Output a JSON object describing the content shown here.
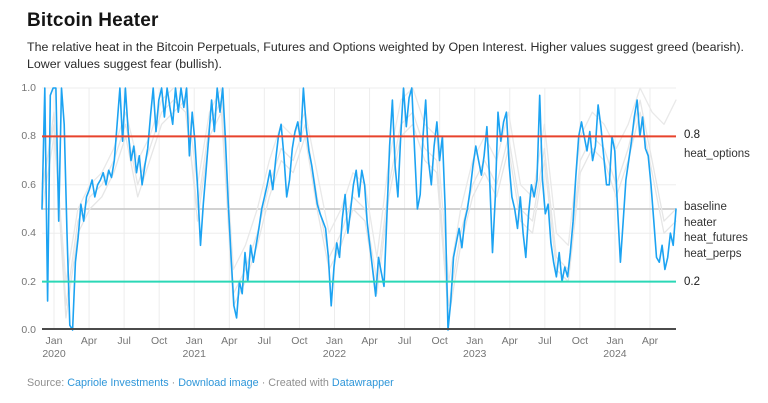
{
  "header": {
    "title": "Bitcoin Heater",
    "description": "The relative heat in the Bitcoin Perpetuals, Futures and Options weighted by Open Interest. Higher values suggest greed (bearish). Lower values suggest fear (bullish)."
  },
  "footer": {
    "source_prefix": "Source:",
    "source_link": "Capriole Investments",
    "separator": "·",
    "download_link": "Download image",
    "created_prefix": "Created with",
    "created_link": "Datawrapper"
  },
  "chart_data": {
    "type": "line",
    "title": "Bitcoin Heater",
    "xlabel": "",
    "ylabel": "",
    "ylim": [
      0.0,
      1.0
    ],
    "grid": true,
    "legend_position": "right",
    "x_range": "Jan 2020 - Jun 2024, weekly (heater) / monthly (component series)",
    "y_ticks": [
      {
        "label": "1.0",
        "v": 1.0
      },
      {
        "label": "0.8",
        "v": 0.8
      },
      {
        "label": "0.6",
        "v": 0.6
      },
      {
        "label": "0.4",
        "v": 0.4
      },
      {
        "label": "0.2",
        "v": 0.2
      },
      {
        "label": "0.0",
        "v": 0.0
      }
    ],
    "x_ticks": [
      {
        "month": "Jan",
        "year": "2020"
      },
      {
        "month": "Apr",
        "year": ""
      },
      {
        "month": "Jul",
        "year": ""
      },
      {
        "month": "Oct",
        "year": ""
      },
      {
        "month": "Jan",
        "year": "2021"
      },
      {
        "month": "Apr",
        "year": ""
      },
      {
        "month": "Jul",
        "year": ""
      },
      {
        "month": "Oct",
        "year": ""
      },
      {
        "month": "Jan",
        "year": "2022"
      },
      {
        "month": "Apr",
        "year": ""
      },
      {
        "month": "Jul",
        "year": ""
      },
      {
        "month": "Oct",
        "year": ""
      },
      {
        "month": "Jan",
        "year": "2023"
      },
      {
        "month": "Apr",
        "year": ""
      },
      {
        "month": "Jul",
        "year": ""
      },
      {
        "month": "Oct",
        "year": ""
      },
      {
        "month": "Jan",
        "year": "2024"
      },
      {
        "month": "Apr",
        "year": ""
      }
    ],
    "series": [
      {
        "name": "heat_futures",
        "color": "#e6e6e6",
        "width": 1.3,
        "values": [
          0.55,
          0.9,
          0.1,
          0.45,
          0.55,
          0.6,
          0.7,
          0.85,
          0.6,
          0.75,
          0.9,
          0.95,
          0.9,
          0.5,
          0.85,
          0.95,
          0.15,
          0.25,
          0.4,
          0.6,
          0.75,
          0.7,
          0.85,
          0.55,
          0.3,
          0.4,
          0.55,
          0.5,
          0.2,
          0.6,
          0.85,
          0.9,
          0.75,
          0.7,
          0.1,
          0.4,
          0.6,
          0.7,
          0.6,
          0.8,
          0.5,
          0.45,
          0.75,
          0.3,
          0.25,
          0.7,
          0.8,
          0.75,
          0.6,
          0.75,
          0.95,
          0.7,
          0.45,
          0.5
        ]
      },
      {
        "name": "heat_perps",
        "color": "#e6e6e6",
        "width": 1.3,
        "values": [
          0.6,
          0.85,
          0.05,
          0.4,
          0.5,
          0.55,
          0.65,
          0.8,
          0.55,
          0.7,
          0.85,
          0.9,
          0.95,
          0.45,
          0.8,
          0.9,
          0.1,
          0.2,
          0.35,
          0.55,
          0.7,
          0.65,
          0.8,
          0.5,
          0.25,
          0.35,
          0.5,
          0.45,
          0.15,
          0.55,
          0.8,
          0.85,
          0.7,
          0.65,
          0.05,
          0.35,
          0.55,
          0.65,
          0.55,
          0.75,
          0.45,
          0.4,
          0.7,
          0.25,
          0.2,
          0.65,
          0.75,
          0.7,
          0.55,
          0.7,
          0.9,
          0.65,
          0.4,
          0.45
        ]
      },
      {
        "name": "heat_options",
        "color": "#e9e9e9",
        "width": 1.3,
        "values": [
          0.5,
          0.8,
          0.2,
          0.5,
          0.6,
          0.65,
          0.75,
          0.9,
          0.7,
          0.8,
          0.95,
          1.0,
          1.0,
          0.6,
          0.9,
          1.0,
          0.25,
          0.35,
          0.5,
          0.7,
          0.85,
          0.8,
          0.9,
          0.65,
          0.4,
          0.5,
          0.65,
          0.6,
          0.3,
          0.7,
          0.95,
          1.0,
          0.85,
          0.8,
          0.2,
          0.5,
          0.7,
          0.8,
          0.7,
          0.9,
          0.6,
          0.55,
          0.85,
          0.4,
          0.35,
          0.8,
          0.9,
          0.85,
          0.75,
          0.85,
          1.0,
          0.9,
          0.85,
          0.95
        ]
      },
      {
        "name": "heater",
        "color": "#1ca3f2",
        "width": 1.6,
        "values": [
          0.5,
          1.0,
          0.12,
          0.97,
          1.0,
          1.0,
          0.45,
          1.0,
          0.85,
          0.4,
          0.02,
          0.0,
          0.28,
          0.38,
          0.52,
          0.45,
          0.55,
          0.58,
          0.62,
          0.55,
          0.6,
          0.62,
          0.65,
          0.6,
          0.66,
          0.63,
          0.7,
          0.85,
          1.0,
          0.78,
          1.0,
          0.82,
          0.7,
          0.76,
          0.65,
          0.72,
          0.6,
          0.68,
          0.75,
          0.88,
          1.0,
          0.82,
          0.95,
          1.0,
          0.88,
          1.0,
          0.92,
          0.85,
          1.0,
          0.9,
          1.0,
          0.92,
          1.0,
          0.72,
          0.9,
          0.78,
          0.58,
          0.35,
          0.52,
          0.66,
          0.8,
          0.95,
          0.82,
          1.0,
          0.9,
          1.0,
          0.78,
          0.52,
          0.3,
          0.1,
          0.05,
          0.2,
          0.15,
          0.32,
          0.2,
          0.35,
          0.28,
          0.35,
          0.42,
          0.5,
          0.55,
          0.6,
          0.66,
          0.58,
          0.7,
          0.8,
          0.85,
          0.72,
          0.55,
          0.62,
          0.75,
          0.82,
          0.86,
          0.78,
          1.0,
          0.84,
          0.74,
          0.68,
          0.6,
          0.52,
          0.48,
          0.45,
          0.42,
          0.3,
          0.1,
          0.26,
          0.36,
          0.3,
          0.46,
          0.56,
          0.4,
          0.5,
          0.6,
          0.66,
          0.55,
          0.66,
          0.6,
          0.44,
          0.34,
          0.24,
          0.14,
          0.3,
          0.24,
          0.18,
          0.46,
          0.76,
          0.95,
          0.68,
          0.55,
          0.8,
          1.0,
          0.84,
          0.96,
          1.0,
          0.74,
          0.5,
          0.56,
          0.8,
          0.95,
          0.7,
          0.6,
          0.76,
          0.86,
          0.7,
          0.8,
          0.5,
          0.0,
          0.12,
          0.3,
          0.36,
          0.42,
          0.34,
          0.45,
          0.5,
          0.58,
          0.68,
          0.76,
          0.7,
          0.64,
          0.72,
          0.84,
          0.62,
          0.32,
          0.55,
          0.9,
          0.78,
          0.86,
          0.9,
          0.68,
          0.55,
          0.5,
          0.42,
          0.55,
          0.4,
          0.3,
          0.48,
          0.6,
          0.55,
          0.62,
          0.97,
          0.62,
          0.48,
          0.52,
          0.36,
          0.28,
          0.22,
          0.32,
          0.2,
          0.26,
          0.22,
          0.32,
          0.45,
          0.64,
          0.8,
          0.86,
          0.8,
          0.74,
          0.82,
          0.7,
          0.76,
          0.93,
          0.84,
          0.72,
          0.6,
          0.6,
          0.8,
          0.74,
          0.5,
          0.28,
          0.45,
          0.62,
          0.7,
          0.78,
          0.88,
          0.95,
          0.8,
          0.88,
          0.75,
          0.72,
          0.6,
          0.45,
          0.3,
          0.28,
          0.35,
          0.25,
          0.3,
          0.4,
          0.35,
          0.5
        ]
      }
    ],
    "reference_lines": [
      {
        "label": "0.8",
        "value": 0.8,
        "color": "#e8432c",
        "width": 2
      },
      {
        "label": "baseline",
        "value": 0.5,
        "color": "#c4c4c4",
        "width": 1.4
      },
      {
        "label": "0.2",
        "value": 0.2,
        "color": "#2bd8b6",
        "width": 2
      }
    ],
    "right_labels": [
      {
        "text": "0.8",
        "v": 0.8,
        "cls": "val"
      },
      {
        "text": "heat_options",
        "v": 0.722,
        "cls": ""
      },
      {
        "text": "baseline",
        "v": 0.505,
        "cls": ""
      },
      {
        "text": "heater",
        "v": 0.44,
        "cls": ""
      },
      {
        "text": "heat_futures",
        "v": 0.375,
        "cls": ""
      },
      {
        "text": "heat_perps",
        "v": 0.31,
        "cls": ""
      },
      {
        "text": "0.2",
        "v": 0.195,
        "cls": "val"
      }
    ],
    "axis_color": "#4b4b4b",
    "gridline_color": "#ededed"
  }
}
